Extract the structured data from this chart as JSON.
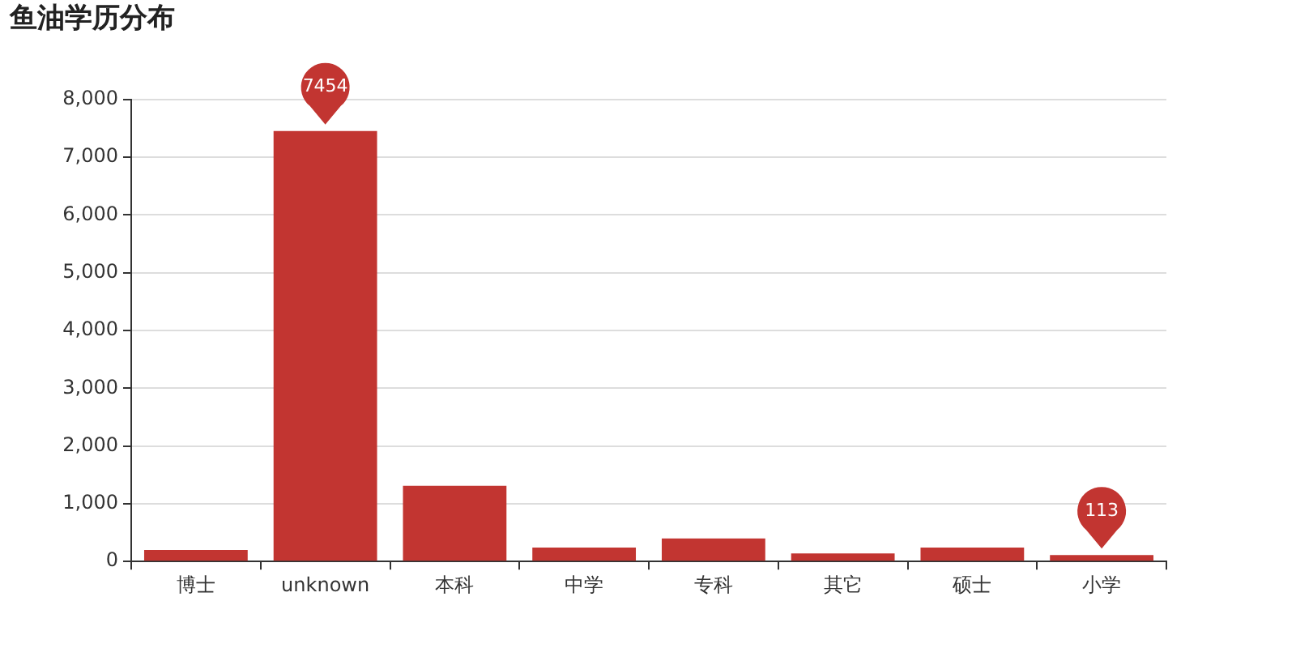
{
  "chart_data": {
    "type": "bar",
    "title": "鱼油学历分布",
    "categories": [
      "博士",
      "unknown",
      "本科",
      "中学",
      "专科",
      "其它",
      "硕士",
      "小学"
    ],
    "values": [
      200,
      7454,
      1310,
      240,
      400,
      140,
      240,
      113
    ],
    "value_labels": [
      null,
      "7454",
      null,
      null,
      null,
      null,
      null,
      "113"
    ],
    "color": "#c23531",
    "ylim": [
      0,
      8000
    ],
    "yticks": [
      {
        "value": 0,
        "label": "0"
      },
      {
        "value": 1000,
        "label": "1,000"
      },
      {
        "value": 2000,
        "label": "2,000"
      },
      {
        "value": 3000,
        "label": "3,000"
      },
      {
        "value": 4000,
        "label": "4,000"
      },
      {
        "value": 5000,
        "label": "5,000"
      },
      {
        "value": 6000,
        "label": "6,000"
      },
      {
        "value": 7000,
        "label": "7,000"
      },
      {
        "value": 8000,
        "label": "8,000"
      }
    ],
    "grid": "y"
  }
}
